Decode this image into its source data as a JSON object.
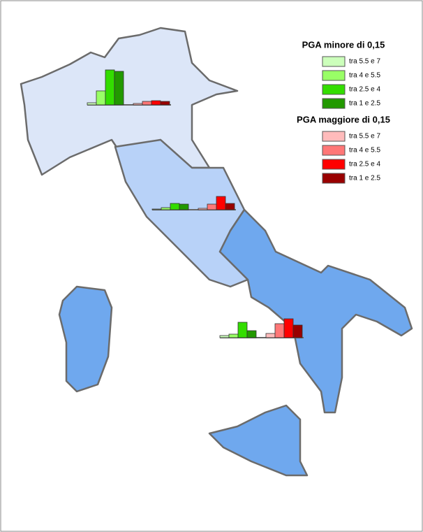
{
  "legend": {
    "groups": [
      {
        "title": "PGA minore di 0,15",
        "items": [
          {
            "label": "tra 5.5 e 7",
            "color": "#ccffbb"
          },
          {
            "label": "tra 4 e 5.5",
            "color": "#99ff66"
          },
          {
            "label": "tra 2.5 e 4",
            "color": "#33dd00"
          },
          {
            "label": "tra 1 e 2.5",
            "color": "#229900"
          }
        ]
      },
      {
        "title": "PGA maggiore di 0,15",
        "items": [
          {
            "label": "tra 5.5 e 7",
            "color": "#ffbbbb"
          },
          {
            "label": "tra 4 e 5.5",
            "color": "#ff7777"
          },
          {
            "label": "tra 2.5 e 4",
            "color": "#ff0000"
          },
          {
            "label": "tra 1 e 2.5",
            "color": "#990000"
          }
        ]
      }
    ]
  },
  "regions": [
    {
      "values": [
        3,
        20,
        50,
        48,
        2,
        5,
        6,
        5
      ]
    },
    {
      "values": [
        1,
        3,
        9,
        8,
        2,
        8,
        19,
        9
      ]
    },
    {
      "values": [
        3,
        5,
        22,
        10,
        6,
        20,
        27,
        18
      ]
    }
  ]
}
